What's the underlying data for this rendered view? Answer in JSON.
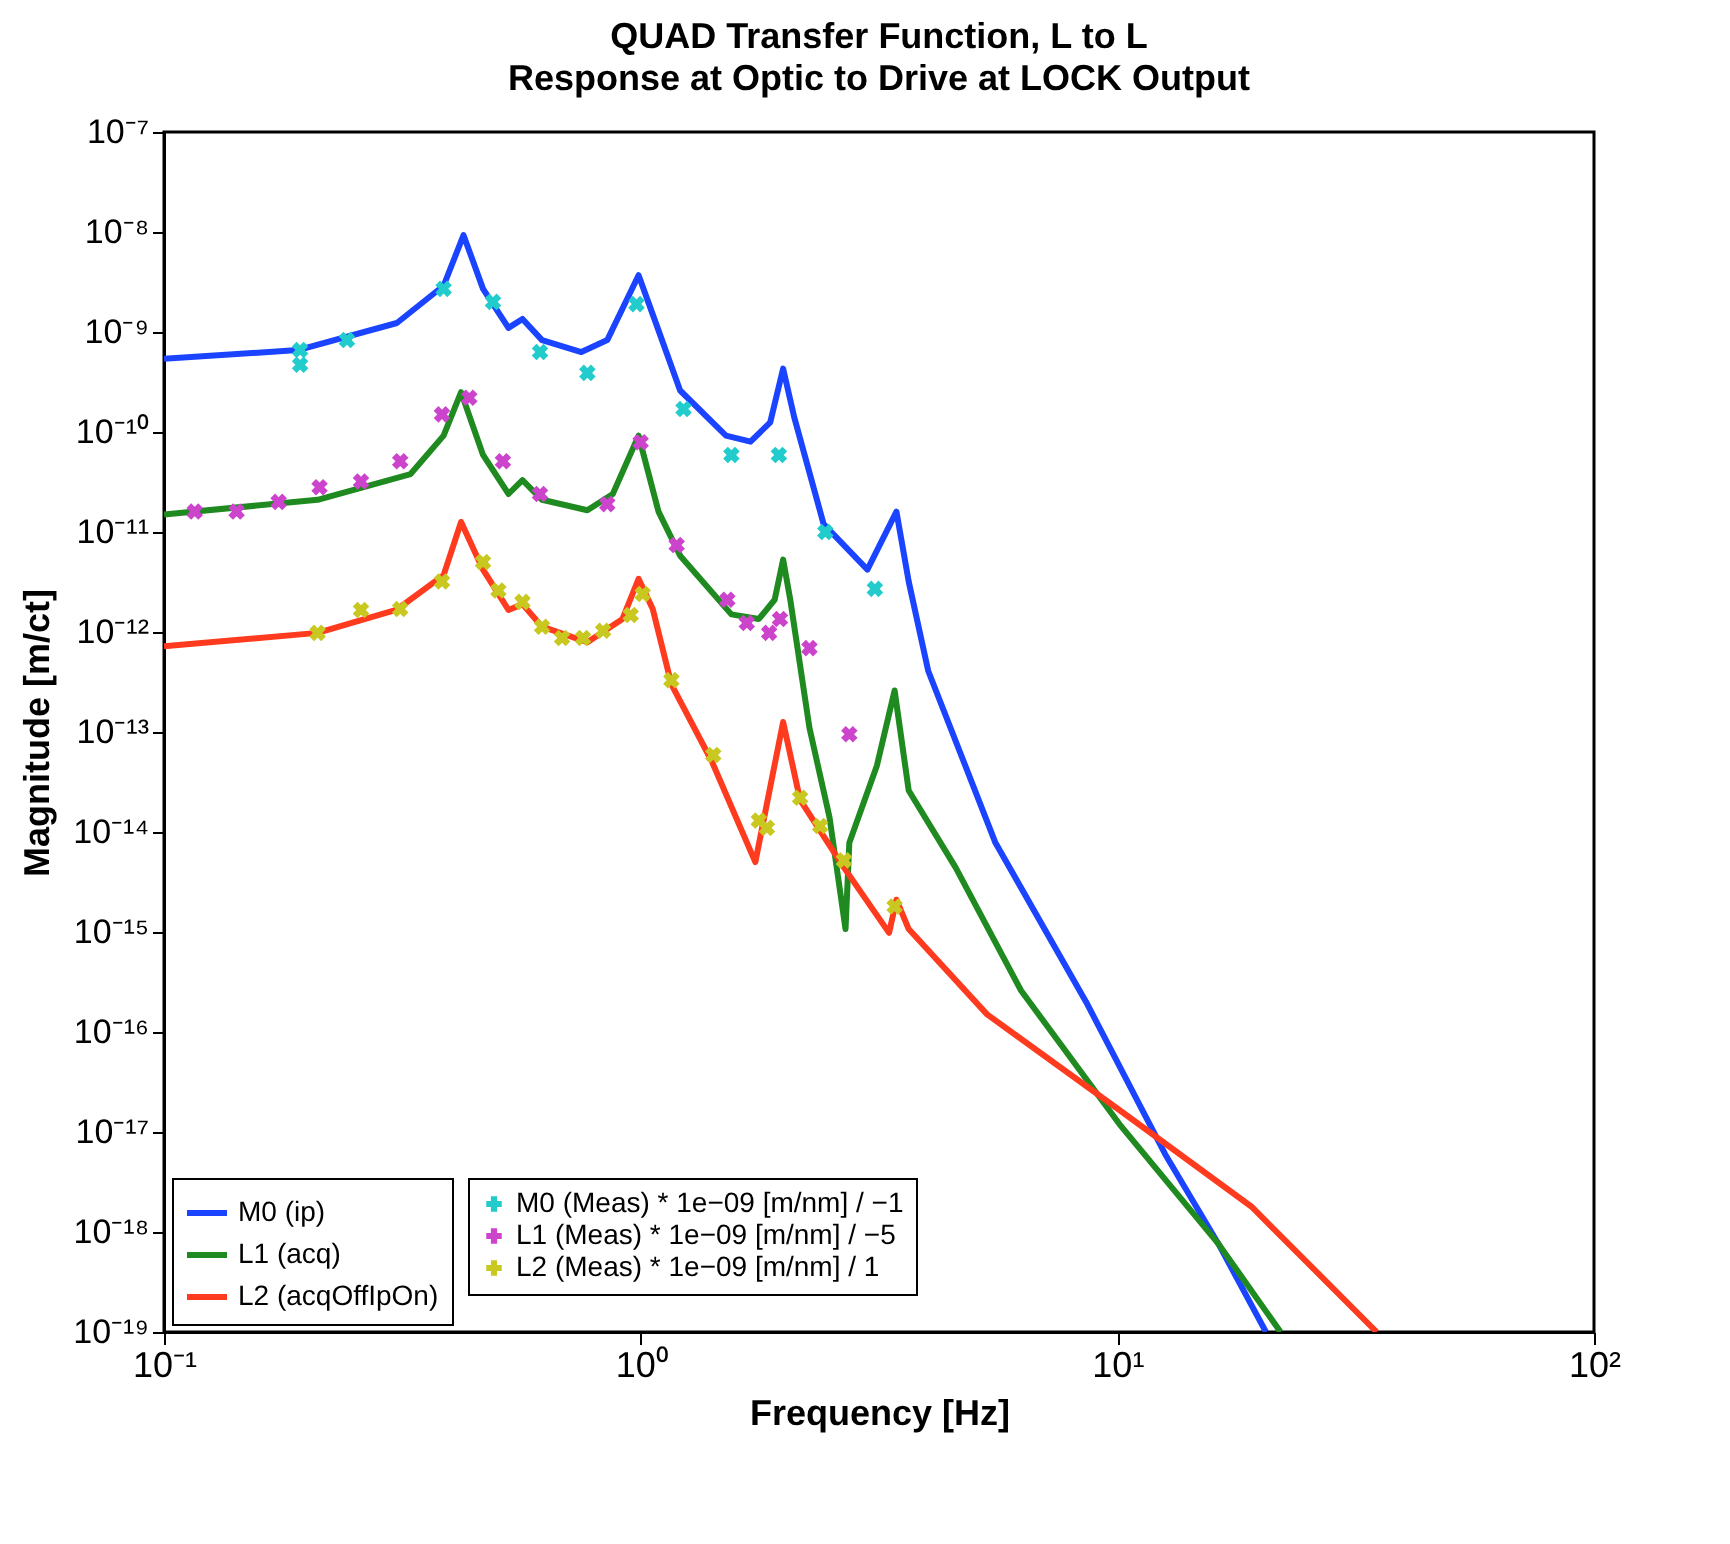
{
  "chart_data": {
    "type": "line",
    "title": "QUAD Transfer Function, L to L",
    "subtitle": "Response at Optic to Drive at LOCK Output",
    "xlabel": "Frequency [Hz]",
    "ylabel": "Magnitude [m/ct]",
    "log": "xy",
    "grid": false,
    "legend": "bottom left",
    "xlim": [
      0.1,
      100
    ],
    "xticks": [
      {
        "value": 0.1,
        "label": "10⁻¹"
      },
      {
        "value": 1,
        "label": "10⁰"
      },
      {
        "value": 10,
        "label": "10¹"
      },
      {
        "value": 100,
        "label": "10²"
      }
    ],
    "ylim": [
      1e-19,
      1e-07
    ],
    "yticks": [
      {
        "value": 1e-07,
        "label": "10⁻⁷"
      },
      {
        "value": 1e-08,
        "label": "10⁻⁸"
      },
      {
        "value": 1e-09,
        "label": "10⁻⁹"
      },
      {
        "value": 1e-10,
        "label": "10⁻¹⁰"
      },
      {
        "value": 1e-11,
        "label": "10⁻¹¹"
      },
      {
        "value": 1e-12,
        "label": "10⁻¹²"
      },
      {
        "value": 1e-13,
        "label": "10⁻¹³"
      },
      {
        "value": 1e-14,
        "label": "10⁻¹⁴"
      },
      {
        "value": 1e-15,
        "label": "10⁻¹⁵"
      },
      {
        "value": 1e-16,
        "label": "10⁻¹⁶"
      },
      {
        "value": 1e-17,
        "label": "10⁻¹⁷"
      },
      {
        "value": 1e-18,
        "label": "10⁻¹⁸"
      },
      {
        "value": 1e-19,
        "label": "10⁻¹⁹"
      }
    ],
    "series": [
      {
        "name": "M0 (ip)",
        "color": "#1a44ff",
        "x": [
          0.1,
          0.191,
          0.308,
          0.386,
          0.425,
          0.467,
          0.528,
          0.565,
          0.621,
          0.751,
          0.851,
          0.99,
          1.06,
          1.21,
          1.51,
          1.7,
          1.87,
          1.99,
          2.1,
          2.42,
          2.99,
          3.44,
          3.65,
          4.01,
          5.55,
          8.6,
          12.6,
          16.3,
          20.5
        ],
        "values": [
          5.4e-10,
          6.6e-10,
          1.23e-09,
          2.9e-09,
          9.3e-09,
          2.7e-09,
          1.1e-09,
          1.35e-09,
          8.3e-10,
          6.3e-10,
          8.3e-10,
          3.7e-09,
          1.5e-09,
          2.6e-10,
          9.2e-11,
          8e-11,
          1.25e-10,
          4.3e-10,
          1.4e-10,
          1.2e-11,
          4.2e-12,
          1.6e-11,
          3.2e-12,
          4.1e-13,
          7.8e-15,
          2e-16,
          6e-18,
          7.6e-19,
          1e-19
        ]
      },
      {
        "name": "L1 (acq)",
        "color": "#1f8a1f",
        "x": [
          0.1,
          0.21,
          0.329,
          0.386,
          0.42,
          0.467,
          0.528,
          0.565,
          0.621,
          0.773,
          0.874,
          0.99,
          1.09,
          1.21,
          1.55,
          1.77,
          1.91,
          1.99,
          2.06,
          2.26,
          2.49,
          2.69,
          2.74,
          3.13,
          3.41,
          3.65,
          4.58,
          6.28,
          10.1,
          16.3,
          22.0
        ],
        "values": [
          1.5e-11,
          2.1e-11,
          3.8e-11,
          9.2e-11,
          2.5e-10,
          5.9e-11,
          2.4e-11,
          3.3e-11,
          2.1e-11,
          1.65e-11,
          2.4e-11,
          9.2e-11,
          1.6e-11,
          5.8e-12,
          1.5e-12,
          1.35e-12,
          2.1e-12,
          5.3e-12,
          2.1e-12,
          1.1e-13,
          1.4e-14,
          1.07e-15,
          7.8e-15,
          4.6e-14,
          2.6e-13,
          2.6e-14,
          4.4e-15,
          2.6e-16,
          1.2e-17,
          7.6e-19,
          1e-19
        ]
      },
      {
        "name": "L2 (acqOffIpOn)",
        "color": "#ff3b1f",
        "x": [
          0.1,
          0.21,
          0.307,
          0.386,
          0.42,
          0.467,
          0.528,
          0.565,
          0.621,
          0.773,
          0.916,
          0.99,
          1.06,
          1.16,
          1.41,
          1.74,
          1.99,
          2.16,
          2.67,
          3.32,
          3.44,
          3.65,
          5.33,
          10.1,
          19.1,
          35.0
        ],
        "values": [
          7.2e-13,
          9.8e-13,
          1.66e-12,
          3.7e-12,
          1.26e-11,
          4.2e-12,
          1.66e-12,
          1.9e-12,
          1.13e-12,
          7.9e-13,
          1.35e-12,
          3.4e-12,
          1.7e-12,
          3e-13,
          5.1e-14,
          5e-15,
          1.26e-13,
          2.1e-14,
          4.4e-15,
          9.8e-16,
          2.1e-15,
          1.07e-15,
          1.5e-16,
          1.66e-17,
          1.8e-18,
          1e-19
        ]
      },
      {
        "name": "M0 (Meas) * 1e−09 [m/nm] / −1",
        "type": "scatter",
        "marker": "cross",
        "color": "#22cccc",
        "x": [
          0.193,
          0.193,
          0.242,
          0.386,
          0.49,
          0.615,
          0.773,
          0.98,
          1.23,
          1.55,
          1.95,
          2.44,
          3.1
        ],
        "values": [
          6.6e-10,
          4.7e-10,
          8.3e-10,
          2.7e-09,
          2e-09,
          6.3e-10,
          3.9e-10,
          1.9e-09,
          1.7e-10,
          5.9e-11,
          5.9e-11,
          1e-11,
          2.7e-12
        ]
      },
      {
        "name": "L1 (Meas) * 1e−09 [m/nm] / −5",
        "type": "scatter",
        "marker": "cross",
        "color": "#cc44cc",
        "x": [
          0.116,
          0.142,
          0.174,
          0.212,
          0.259,
          0.313,
          0.383,
          0.437,
          0.514,
          0.615,
          0.851,
          1.0,
          1.19,
          1.52,
          1.67,
          1.86,
          1.96,
          2.26,
          2.74
        ],
        "values": [
          1.6e-11,
          1.6e-11,
          2e-11,
          2.8e-11,
          3.2e-11,
          5.1e-11,
          1.5e-10,
          2.2e-10,
          5.1e-11,
          2.4e-11,
          1.9e-11,
          7.9e-11,
          7.4e-12,
          2.1e-12,
          1.23e-12,
          9.8e-13,
          1.35e-12,
          6.9e-13,
          9.5e-14
        ]
      },
      {
        "name": "L2 (Meas) * 1e−09 [m/nm] / 1",
        "type": "scatter",
        "marker": "cross",
        "color": "#c8c820",
        "x": [
          0.21,
          0.259,
          0.313,
          0.383,
          0.467,
          0.503,
          0.565,
          0.621,
          0.684,
          0.757,
          0.834,
          0.953,
          1.01,
          1.16,
          1.42,
          1.77,
          1.84,
          2.16,
          2.38,
          2.67,
          3.41
        ],
        "values": [
          9.8e-13,
          1.66e-12,
          1.7e-12,
          3.2e-12,
          5e-12,
          2.6e-12,
          2e-12,
          1.13e-12,
          8.7e-13,
          8.7e-13,
          1.03e-12,
          1.48e-12,
          2.4e-12,
          3.3e-13,
          5.9e-14,
          1.3e-14,
          1.1e-14,
          2.2e-14,
          1.15e-14,
          5.2e-15,
          1.8e-15
        ]
      }
    ]
  }
}
